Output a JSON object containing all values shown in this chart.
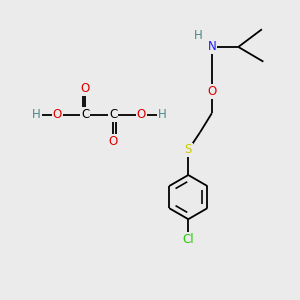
{
  "background_color": "#ebebeb",
  "figsize": [
    3.0,
    3.0
  ],
  "dpi": 100,
  "colors": {
    "N": "#1a1aff",
    "O": "#dd0000",
    "S": "#cccc00",
    "Cl": "#22cc00",
    "H": "#4a8888",
    "C": "#000000",
    "bond": "#000000"
  },
  "bond_lw": 1.3,
  "font_size": 8.5
}
